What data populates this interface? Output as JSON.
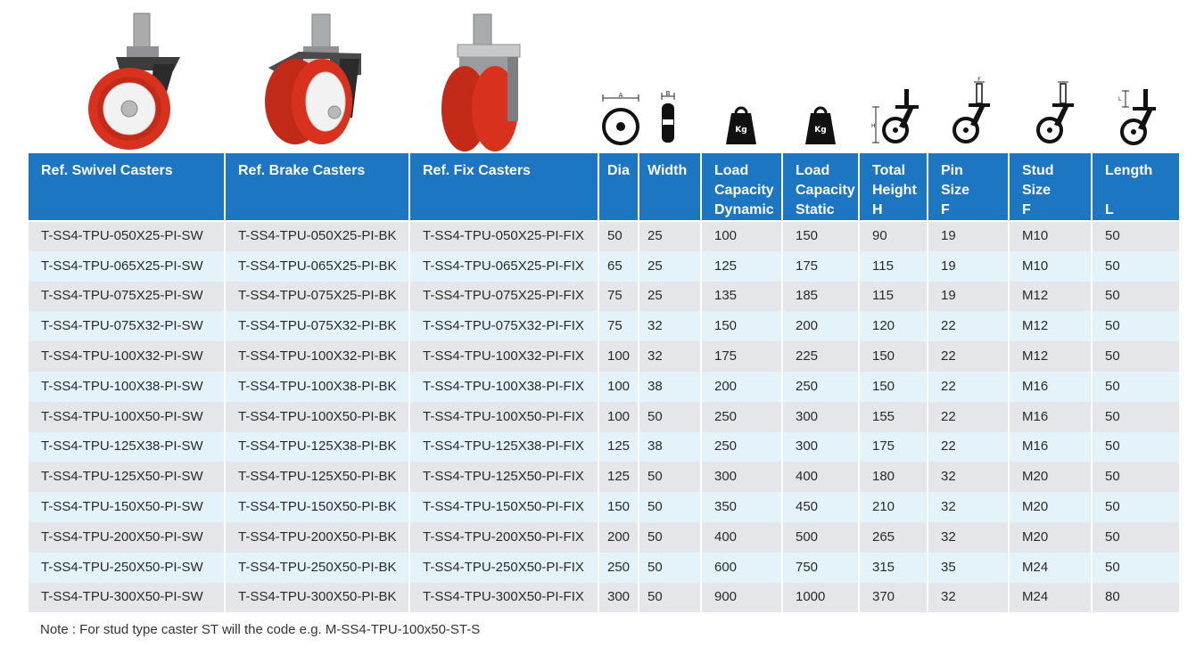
{
  "images": {
    "swivel_caster": "swivel-caster-image",
    "brake_caster": "brake-caster-image",
    "fix_caster": "fix-caster-image"
  },
  "icons": {
    "dia": {
      "name": "diameter-diagram-icon",
      "label": "A"
    },
    "width": {
      "name": "width-diagram-icon",
      "label": "B"
    },
    "load_dynamic": {
      "name": "weight-kg-icon",
      "label": "Kg"
    },
    "load_static": {
      "name": "weight-kg-icon",
      "label": "Kg"
    },
    "total_height": {
      "name": "total-height-diagram-icon",
      "label": "H"
    },
    "pin_size": {
      "name": "pin-size-diagram-icon",
      "label": "F"
    },
    "stud_size": {
      "name": "stud-size-diagram-icon",
      "label": ""
    },
    "length": {
      "name": "length-diagram-icon",
      "label": "L"
    }
  },
  "colors": {
    "header_bg": "#1c76c1",
    "row_odd": "#e4e6e9",
    "row_even": "#e4f3fa",
    "wheel_red": "#d8321e",
    "hub_white": "#f2f2f2"
  },
  "table": {
    "headers": [
      "Ref. Swivel Casters",
      "Ref. Brake Casters",
      "Ref. Fix Casters",
      "Dia",
      "Width",
      "Load\nCapacity\nDynamic",
      "Load\nCapacity\nStatic",
      "Total\nHeight\nH",
      "Pin\nSize\nF",
      "Stud\nSize\nF",
      "Length\n\nL"
    ],
    "rows": [
      [
        "T-SS4-TPU-050X25-PI-SW",
        "T-SS4-TPU-050X25-PI-BK",
        "T-SS4-TPU-050X25-PI-FIX",
        "50",
        "25",
        "100",
        "150",
        "90",
        "19",
        "M10",
        "50"
      ],
      [
        "T-SS4-TPU-065X25-PI-SW",
        "T-SS4-TPU-065X25-PI-BK",
        "T-SS4-TPU-065X25-PI-FIX",
        "65",
        "25",
        "125",
        "175",
        "115",
        "19",
        "M10",
        "50"
      ],
      [
        "T-SS4-TPU-075X25-PI-SW",
        "T-SS4-TPU-075X25-PI-BK",
        "T-SS4-TPU-075X25-PI-FIX",
        "75",
        "25",
        "135",
        "185",
        "115",
        "19",
        "M12",
        "50"
      ],
      [
        "T-SS4-TPU-075X32-PI-SW",
        "T-SS4-TPU-075X32-PI-BK",
        "T-SS4-TPU-075X32-PI-FIX",
        "75",
        "32",
        "150",
        "200",
        "120",
        "22",
        "M12",
        "50"
      ],
      [
        "T-SS4-TPU-100X32-PI-SW",
        "T-SS4-TPU-100X32-PI-BK",
        "T-SS4-TPU-100X32-PI-FIX",
        "100",
        "32",
        "175",
        "225",
        "150",
        "22",
        "M12",
        "50"
      ],
      [
        "T-SS4-TPU-100X38-PI-SW",
        "T-SS4-TPU-100X38-PI-BK",
        "T-SS4-TPU-100X38-PI-FIX",
        "100",
        "38",
        "200",
        "250",
        "150",
        "22",
        "M16",
        "50"
      ],
      [
        "T-SS4-TPU-100X50-PI-SW",
        "T-SS4-TPU-100X50-PI-BK",
        "T-SS4-TPU-100X50-PI-FIX",
        "100",
        "50",
        "250",
        "300",
        "155",
        "22",
        "M16",
        "50"
      ],
      [
        "T-SS4-TPU-125X38-PI-SW",
        "T-SS4-TPU-125X38-PI-BK",
        "T-SS4-TPU-125X38-PI-FIX",
        "125",
        "38",
        "250",
        "300",
        "175",
        "22",
        "M16",
        "50"
      ],
      [
        "T-SS4-TPU-125X50-PI-SW",
        "T-SS4-TPU-125X50-PI-BK",
        "T-SS4-TPU-125X50-PI-FIX",
        "125",
        "50",
        "300",
        "400",
        "180",
        "32",
        "M20",
        "50"
      ],
      [
        "T-SS4-TPU-150X50-PI-SW",
        "T-SS4-TPU-150X50-PI-BK",
        "T-SS4-TPU-150X50-PI-FIX",
        "150",
        "50",
        "350",
        "450",
        "210",
        "32",
        "M20",
        "50"
      ],
      [
        "T-SS4-TPU-200X50-PI-SW",
        "T-SS4-TPU-200X50-PI-BK",
        "T-SS4-TPU-200X50-PI-FIX",
        "200",
        "50",
        "400",
        "500",
        "265",
        "32",
        "M20",
        "50"
      ],
      [
        "T-SS4-TPU-250X50-PI-SW",
        "T-SS4-TPU-250X50-PI-BK",
        "T-SS4-TPU-250X50-PI-FIX",
        "250",
        "50",
        "600",
        "750",
        "315",
        "35",
        "M24",
        "50"
      ],
      [
        "T-SS4-TPU-300X50-PI-SW",
        "T-SS4-TPU-300X50-PI-BK",
        "T-SS4-TPU-300X50-PI-FIX",
        "300",
        "50",
        "900",
        "1000",
        "370",
        "32",
        "M24",
        "80"
      ]
    ]
  },
  "note": "Note : For stud type caster ST will the code e.g. M-SS4-TPU-100x50-ST-S"
}
